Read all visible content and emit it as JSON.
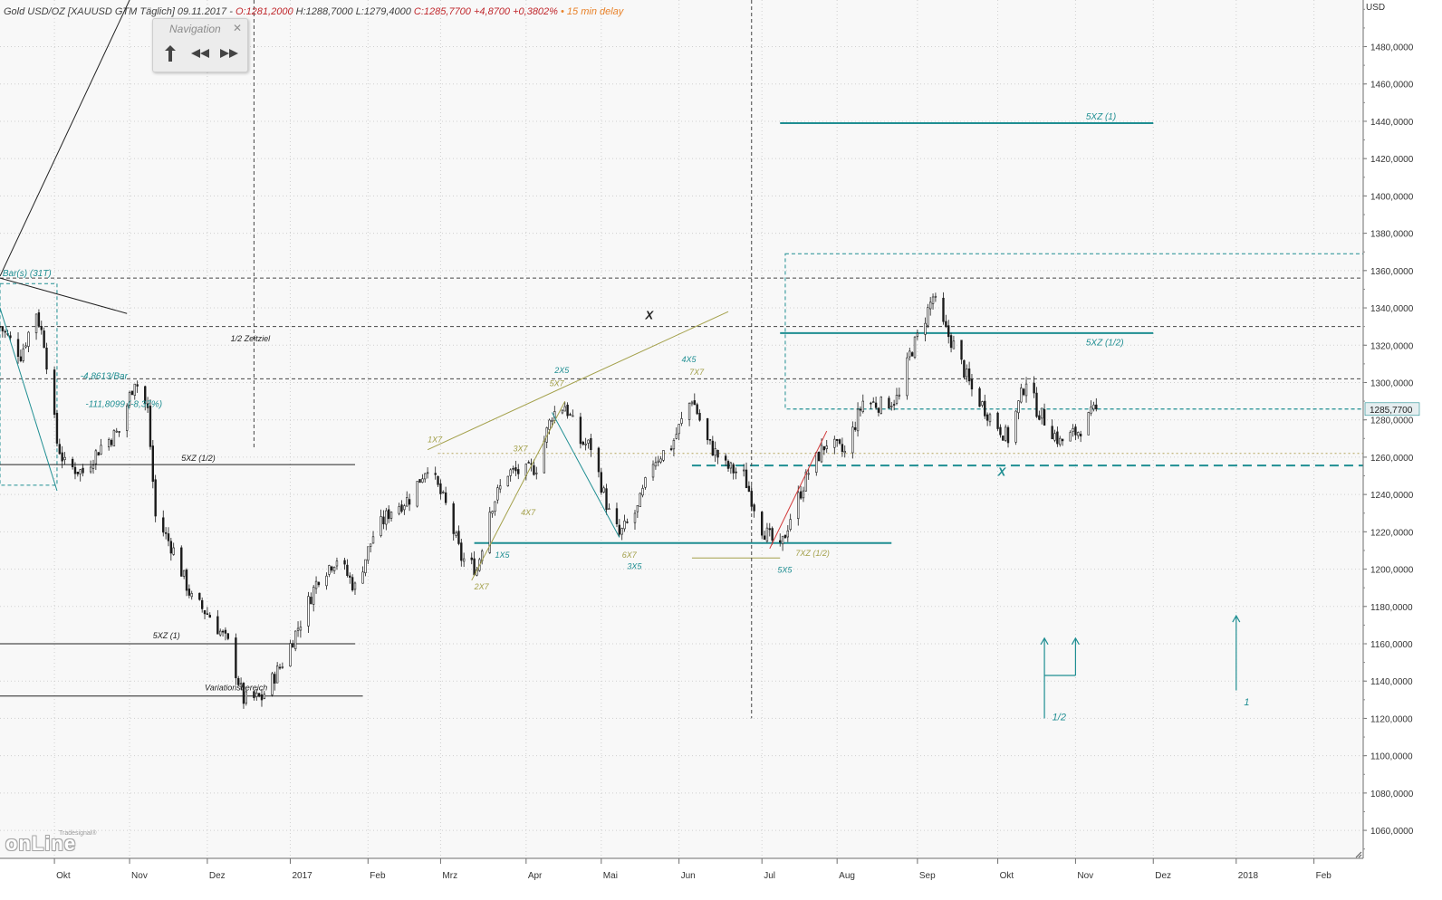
{
  "header": {
    "parts": [
      {
        "text": "Gold USD/OZ [XAUUSD GTM Täglich] 09.11.2017 - ",
        "color": "#404040"
      },
      {
        "text": "O:1281,2000",
        "color": "#c0282d"
      },
      {
        "text": " H:1288,7000 L:1279,4000 ",
        "color": "#404040"
      },
      {
        "text": "C:1285,7700 +4,8700 +0,3802%",
        "color": "#c0282d"
      },
      {
        "text": " • 15 min delay",
        "color": "#e8822a"
      }
    ]
  },
  "navigation": {
    "title": "Navigation",
    "close_icon": "close-icon",
    "buttons": [
      {
        "icon": "jump-to-end-icon",
        "name": "jump-button"
      },
      {
        "icon": "rewind-icon",
        "name": "rewind-button"
      },
      {
        "icon": "fast-forward-icon",
        "name": "fast-forward-button"
      }
    ]
  },
  "watermark": {
    "small": "Tradesignal®",
    "big": "onLine"
  },
  "colors": {
    "background": "#ffffff",
    "plot_background": "#f8f8f8",
    "teal": "#1f8e92",
    "olive": "#a3a04a",
    "candle_up": "#ffffff",
    "candle_down": "#1a1a1a",
    "grid": "#d0d0d0",
    "price_marker": "#e6eef0"
  },
  "chart_data": {
    "type": "candlestick",
    "currency_label": "USD",
    "y_range": [
      1045,
      1505
    ],
    "y_ticks": [
      1060,
      1080,
      1100,
      1120,
      1140,
      1160,
      1180,
      1200,
      1220,
      1240,
      1260,
      1280,
      1300,
      1320,
      1340,
      1360,
      1380,
      1400,
      1420,
      1440,
      1460,
      1480
    ],
    "y_tick_labels": [
      "1060,0000",
      "1080,0000",
      "1100,0000",
      "1120,0000",
      "1140,0000",
      "1160,0000",
      "1180,0000",
      "1200,0000",
      "1220,0000",
      "1240,0000",
      "1260,0000",
      "1280,0000",
      "1300,0000",
      "1320,0000",
      "1340,0000",
      "1360,0000",
      "1380,0000",
      "1400,0000",
      "1420,0000",
      "1440,0000",
      "1460,0000",
      "1480,0000"
    ],
    "x_range": [
      "2016-09-12",
      "2018-02-20"
    ],
    "x_ticks": [
      {
        "date": "2016-10-03",
        "label": "Okt"
      },
      {
        "date": "2016-11-01",
        "label": "Nov"
      },
      {
        "date": "2016-12-01",
        "label": "Dez"
      },
      {
        "date": "2017-01-02",
        "label": "2017"
      },
      {
        "date": "2017-02-01",
        "label": "Feb"
      },
      {
        "date": "2017-03-01",
        "label": "Mrz"
      },
      {
        "date": "2017-04-03",
        "label": "Apr"
      },
      {
        "date": "2017-05-02",
        "label": "Mai"
      },
      {
        "date": "2017-06-01",
        "label": "Jun"
      },
      {
        "date": "2017-07-03",
        "label": "Jul"
      },
      {
        "date": "2017-08-01",
        "label": "Aug"
      },
      {
        "date": "2017-09-01",
        "label": "Sep"
      },
      {
        "date": "2017-10-02",
        "label": "Okt"
      },
      {
        "date": "2017-11-01",
        "label": "Nov"
      },
      {
        "date": "2017-12-01",
        "label": "Dez"
      },
      {
        "date": "2018-01-02",
        "label": "2018"
      },
      {
        "date": "2018-02-01",
        "label": "Feb"
      }
    ],
    "last_price_label": "1285,7700",
    "last_price": 1285.77,
    "last_date": "2017-11-09",
    "price_path": [
      [
        "2016-09-12",
        1330
      ],
      [
        "2016-09-20",
        1315
      ],
      [
        "2016-09-26",
        1338
      ],
      [
        "2016-09-29",
        1322
      ],
      [
        "2016-10-04",
        1268
      ],
      [
        "2016-10-07",
        1256
      ],
      [
        "2016-10-14",
        1252
      ],
      [
        "2016-10-21",
        1266
      ],
      [
        "2016-10-28",
        1274
      ],
      [
        "2016-11-03",
        1302
      ],
      [
        "2016-11-08",
        1285
      ],
      [
        "2016-11-11",
        1228
      ],
      [
        "2016-11-18",
        1210
      ],
      [
        "2016-11-25",
        1184
      ],
      [
        "2016-12-02",
        1175
      ],
      [
        "2016-12-09",
        1160
      ],
      [
        "2016-12-15",
        1130
      ],
      [
        "2016-12-22",
        1131
      ],
      [
        "2016-12-30",
        1150
      ],
      [
        "2017-01-06",
        1172
      ],
      [
        "2017-01-13",
        1196
      ],
      [
        "2017-01-20",
        1206
      ],
      [
        "2017-01-27",
        1190
      ],
      [
        "2017-02-03",
        1218
      ],
      [
        "2017-02-10",
        1232
      ],
      [
        "2017-02-17",
        1238
      ],
      [
        "2017-02-24",
        1256
      ],
      [
        "2017-03-03",
        1234
      ],
      [
        "2017-03-09",
        1206
      ],
      [
        "2017-03-15",
        1200
      ],
      [
        "2017-03-20",
        1232
      ],
      [
        "2017-03-27",
        1252
      ],
      [
        "2017-04-03",
        1252
      ],
      [
        "2017-04-07",
        1255
      ],
      [
        "2017-04-13",
        1283
      ],
      [
        "2017-04-18",
        1288
      ],
      [
        "2017-04-24",
        1268
      ],
      [
        "2017-04-28",
        1266
      ],
      [
        "2017-05-05",
        1230
      ],
      [
        "2017-05-09",
        1218
      ],
      [
        "2017-05-16",
        1232
      ],
      [
        "2017-05-22",
        1258
      ],
      [
        "2017-05-29",
        1266
      ],
      [
        "2017-06-06",
        1292
      ],
      [
        "2017-06-12",
        1268
      ],
      [
        "2017-06-19",
        1255
      ],
      [
        "2017-06-26",
        1250
      ],
      [
        "2017-07-03",
        1222
      ],
      [
        "2017-07-10",
        1210
      ],
      [
        "2017-07-14",
        1228
      ],
      [
        "2017-07-21",
        1252
      ],
      [
        "2017-07-28",
        1268
      ],
      [
        "2017-08-04",
        1262
      ],
      [
        "2017-08-11",
        1290
      ],
      [
        "2017-08-18",
        1288
      ],
      [
        "2017-08-25",
        1292
      ],
      [
        "2017-08-29",
        1315
      ],
      [
        "2017-09-01",
        1324
      ],
      [
        "2017-09-07",
        1346
      ],
      [
        "2017-09-11",
        1330
      ],
      [
        "2017-09-15",
        1320
      ],
      [
        "2017-09-22",
        1296
      ],
      [
        "2017-09-29",
        1282
      ],
      [
        "2017-10-06",
        1270
      ],
      [
        "2017-10-13",
        1302
      ],
      [
        "2017-10-17",
        1286
      ],
      [
        "2017-10-20",
        1280
      ],
      [
        "2017-10-26",
        1268
      ],
      [
        "2017-11-02",
        1274
      ],
      [
        "2017-11-09",
        1285.77
      ]
    ],
    "horizontal_lines": [
      {
        "id": "level-1356",
        "price": 1356,
        "style": "dash",
        "color": "#444444",
        "from": "2016-09-12",
        "to": "2018-02-20"
      },
      {
        "id": "level-1330",
        "price": 1330,
        "style": "dash",
        "color": "#444444",
        "from": "2016-09-12",
        "to": "2018-02-20"
      },
      {
        "id": "level-1302",
        "price": 1302,
        "style": "dash",
        "color": "#444444",
        "from": "2016-09-12",
        "to": "2018-02-20"
      },
      {
        "id": "level-1262",
        "price": 1262,
        "style": "dot",
        "color": "#b3a35a",
        "from": "2017-02-28",
        "to": "2018-02-20"
      },
      {
        "id": "level-1285",
        "price": 1285.77,
        "style": "dash",
        "color": "#1f8e92",
        "from": "2017-07-15",
        "to": "2018-02-20"
      },
      {
        "id": "level-1256",
        "price": 1255.5,
        "style": "longdash",
        "color": "#1f8e92",
        "from": "2017-06-06",
        "to": "2018-02-20"
      },
      {
        "id": "level-5xz1-upper",
        "price": 1439,
        "style": "solid",
        "color": "#1f8e92",
        "from": "2017-07-10",
        "to": "2017-12-01"
      },
      {
        "id": "level-5xz-half-upper",
        "price": 1326.5,
        "style": "solid",
        "color": "#1f8e92",
        "from": "2017-07-10",
        "to": "2017-12-01"
      },
      {
        "id": "level-1214-teal",
        "price": 1214,
        "style": "solid",
        "color": "#1f8e92",
        "from": "2017-03-14",
        "to": "2017-08-22"
      },
      {
        "id": "level-1206-olive",
        "price": 1206,
        "style": "solid",
        "color": "#a3a04a",
        "from": "2017-06-06",
        "to": "2017-07-10"
      },
      {
        "id": "level-1256-black",
        "price": 1256,
        "style": "solid",
        "color": "#222222",
        "from": "2016-09-12",
        "to": "2017-01-27"
      },
      {
        "id": "level-1160-black",
        "price": 1160,
        "style": "solid",
        "color": "#222222",
        "from": "2016-09-12",
        "to": "2017-01-27"
      },
      {
        "id": "level-1132-black",
        "price": 1132,
        "style": "solid",
        "color": "#222222",
        "from": "2016-09-12",
        "to": "2017-01-30"
      }
    ],
    "vertical_lines": [
      {
        "date": "2016-12-19",
        "from": 1505,
        "to": 1265,
        "color": "#444444"
      },
      {
        "date": "2017-06-29",
        "from": 1505,
        "to": 1120,
        "color": "#444444"
      }
    ],
    "trend_lines": [
      {
        "from": [
          "2016-09-12",
          1357
        ],
        "to": [
          "2016-11-01",
          1505
        ],
        "color": "#222222"
      },
      {
        "from": [
          "2016-09-12",
          1356
        ],
        "to": [
          "2016-10-31",
          1337
        ],
        "color": "#222222"
      },
      {
        "from": [
          "2016-09-12",
          1340
        ],
        "to": [
          "2016-10-04",
          1242
        ],
        "color": "#1f8e92"
      },
      {
        "from": [
          "2017-02-24",
          1264
        ],
        "to": [
          "2017-06-20",
          1338
        ],
        "color": "#a3a04a"
      },
      {
        "from": [
          "2017-03-13",
          1194
        ],
        "to": [
          "2017-04-18",
          1290
        ],
        "color": "#a3a04a"
      },
      {
        "from": [
          "2017-04-13",
          1284
        ],
        "to": [
          "2017-05-09",
          1217
        ],
        "color": "#1f8e92"
      },
      {
        "from": [
          "2017-07-06",
          1211
        ],
        "to": [
          "2017-07-28",
          1274
        ],
        "color": "#d23a3a"
      }
    ],
    "boxes": [
      {
        "id": "teal-box",
        "from": "2017-07-12",
        "to": "2018-02-20",
        "top": 1369,
        "bottom": 1285.77,
        "color": "#1f8e92"
      },
      {
        "id": "left-box",
        "from": "2016-09-12",
        "to": "2016-10-04",
        "top": 1353,
        "bottom": 1245,
        "color": "#1f8e92"
      }
    ],
    "arrows": [
      {
        "date": "2017-10-20",
        "from": 1120,
        "to": 1163,
        "color": "#1f8e92"
      },
      {
        "date": "2017-11-01",
        "from": 1143,
        "to": 1163,
        "color": "#1f8e92"
      },
      {
        "date": "2018-01-02",
        "from": 1135,
        "to": 1175,
        "color": "#1f8e92"
      }
    ],
    "arrow_connectors": [
      {
        "from": [
          "2017-10-20",
          1143
        ],
        "to": [
          "2017-11-01",
          1143
        ],
        "color": "#1f8e92"
      }
    ],
    "annotations": [
      {
        "text": "5XZ (1)",
        "date": "2017-11-05",
        "price": 1441,
        "color": "#1f8e92",
        "size": 10
      },
      {
        "text": "5XZ (1/2)",
        "date": "2017-11-05",
        "price": 1320,
        "color": "#1f8e92",
        "size": 10
      },
      {
        "text": "X",
        "date": "2017-05-19",
        "price": 1334,
        "color": "#222222",
        "size": 13,
        "bold": true
      },
      {
        "text": "X",
        "date": "2017-10-02",
        "price": 1250,
        "color": "#1f8e92",
        "size": 13,
        "bold": true
      },
      {
        "text": "1/2 Zeitziel",
        "date": "2016-12-10",
        "price": 1322,
        "color": "#222222",
        "size": 9
      },
      {
        "text": "Bar(s) (31T)",
        "date": "2016-09-13",
        "price": 1357,
        "color": "#1f8e92",
        "size": 10
      },
      {
        "text": "-4,8613/Bar",
        "date": "2016-10-13",
        "price": 1302,
        "color": "#1f8e92",
        "size": 10
      },
      {
        "text": "-111,8099 (-8,37%)",
        "date": "2016-10-15",
        "price": 1287,
        "color": "#1f8e92",
        "size": 10
      },
      {
        "text": "5XZ (1/2)",
        "date": "2016-11-21",
        "price": 1258,
        "color": "#222222",
        "size": 9
      },
      {
        "text": "5XZ (1)",
        "date": "2016-11-10",
        "price": 1163,
        "color": "#222222",
        "size": 9
      },
      {
        "text": "Variationsbereich",
        "date": "2016-11-30",
        "price": 1135,
        "color": "#222222",
        "size": 9
      },
      {
        "text": "1X7",
        "date": "2017-02-24",
        "price": 1268,
        "color": "#a3a04a",
        "size": 9
      },
      {
        "text": "2X7",
        "date": "2017-03-14",
        "price": 1189,
        "color": "#a3a04a",
        "size": 9
      },
      {
        "text": "1X5",
        "date": "2017-03-22",
        "price": 1206,
        "color": "#1f8e92",
        "size": 9
      },
      {
        "text": "3X7",
        "date": "2017-03-29",
        "price": 1263,
        "color": "#a3a04a",
        "size": 9
      },
      {
        "text": "4X7",
        "date": "2017-04-01",
        "price": 1229,
        "color": "#a3a04a",
        "size": 9
      },
      {
        "text": "2X5",
        "date": "2017-04-14",
        "price": 1305,
        "color": "#1f8e92",
        "size": 9
      },
      {
        "text": "5X7",
        "date": "2017-04-12",
        "price": 1298,
        "color": "#a3a04a",
        "size": 9
      },
      {
        "text": "6X7",
        "date": "2017-05-10",
        "price": 1206,
        "color": "#a3a04a",
        "size": 9
      },
      {
        "text": "3X5",
        "date": "2017-05-12",
        "price": 1200,
        "color": "#1f8e92",
        "size": 9
      },
      {
        "text": "4X5",
        "date": "2017-06-02",
        "price": 1311,
        "color": "#1f8e92",
        "size": 9
      },
      {
        "text": "7X7",
        "date": "2017-06-05",
        "price": 1304,
        "color": "#a3a04a",
        "size": 9
      },
      {
        "text": "5X5",
        "date": "2017-07-09",
        "price": 1198,
        "color": "#1f8e92",
        "size": 9
      },
      {
        "text": "7XZ (1/2)",
        "date": "2017-07-16",
        "price": 1207,
        "color": "#a3a04a",
        "size": 9
      },
      {
        "text": "1/2",
        "date": "2017-10-23",
        "price": 1119,
        "color": "#1f8e92",
        "size": 11
      },
      {
        "text": "1",
        "date": "2018-01-05",
        "price": 1127,
        "color": "#1f8e92",
        "size": 11
      }
    ]
  }
}
